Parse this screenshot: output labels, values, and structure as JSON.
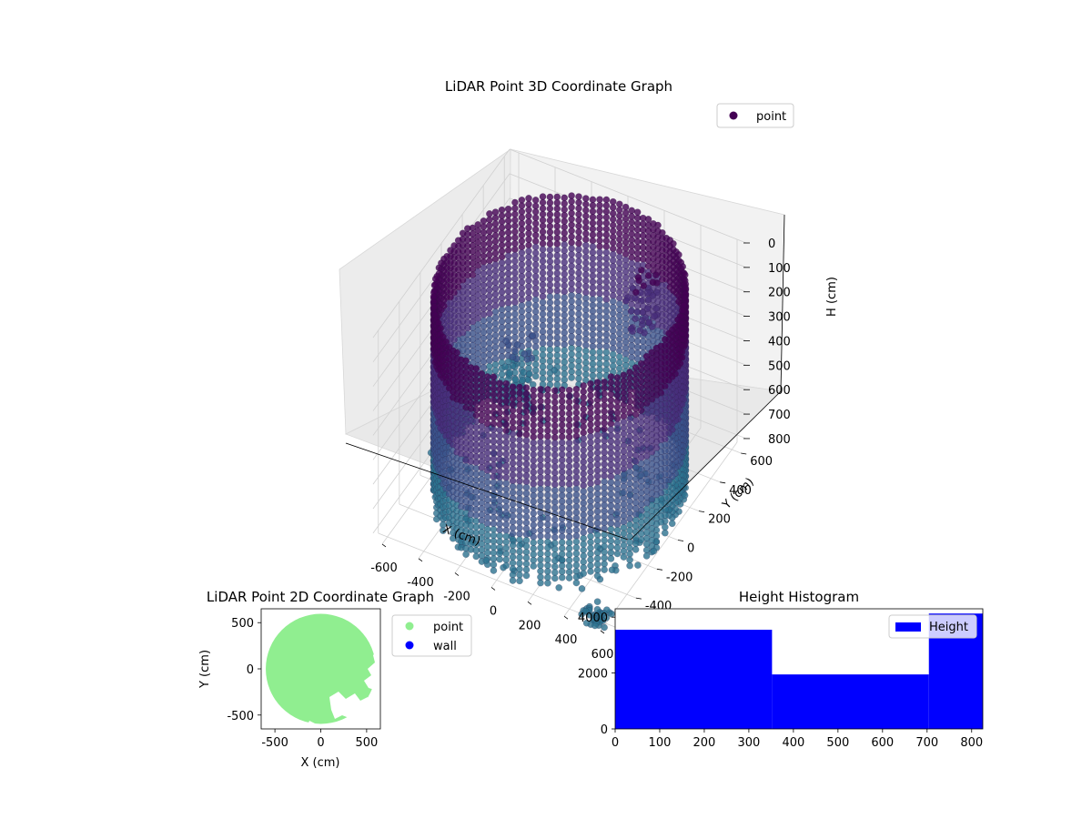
{
  "chart_data": [
    {
      "type": "scatter",
      "dimensions": 3,
      "title": "LiDAR Point 3D Coordinate Graph",
      "xlabel": "X (cm)",
      "ylabel": "Y (cm)",
      "zlabel": "H (cm)",
      "xlim": [
        -650,
        650
      ],
      "ylim": [
        -650,
        650
      ],
      "zlim": [
        830,
        0
      ],
      "x_ticks": [
        -600,
        -400,
        -200,
        0,
        200,
        400,
        600
      ],
      "y_ticks": [
        -600,
        -400,
        -200,
        0,
        200,
        400,
        600
      ],
      "z_ticks": [
        0,
        100,
        200,
        300,
        400,
        500,
        600,
        700,
        800
      ],
      "z_inverted": true,
      "grid": true,
      "legend_position": "top-right",
      "series": [
        {
          "name": "point",
          "color": "#440154",
          "colormap": [
            "#440154",
            "#472d7b",
            "#3b528b",
            "#2c728e"
          ],
          "shape": "cylinder",
          "cylinder_radius": 600,
          "height_range": [
            0,
            830
          ],
          "extras": [
            {
              "x": 200,
              "y": 450,
              "h_top": 130,
              "h_bottom": 380
            },
            {
              "x": -420,
              "y": 350,
              "h_top": 520,
              "h_bottom": 830
            },
            {
              "x": 550,
              "y": -600,
              "h_top": 780,
              "h_bottom": 830
            }
          ]
        }
      ]
    },
    {
      "type": "scatter",
      "title": "LiDAR Point 2D Coordinate Graph",
      "xlabel": "X (cm)",
      "ylabel": "Y (cm)",
      "xlim": [
        -650,
        650
      ],
      "ylim": [
        -650,
        650
      ],
      "x_ticks": [
        -500,
        0,
        500
      ],
      "y_ticks": [
        -500,
        0,
        500
      ],
      "legend_position": "outside-right",
      "series": [
        {
          "name": "point",
          "color": "#90ee90",
          "shape": "disc",
          "center": [
            0,
            0
          ],
          "radius": 600
        },
        {
          "name": "wall",
          "color": "#0000ff"
        }
      ]
    },
    {
      "type": "bar",
      "title": "Height Histogram",
      "xlim": [
        0,
        825
      ],
      "ylim": [
        0,
        4300
      ],
      "x_ticks": [
        0,
        100,
        200,
        300,
        400,
        500,
        600,
        700,
        800
      ],
      "y_ticks": [
        0,
        2000,
        4000
      ],
      "legend_position": "top-right",
      "series": [
        {
          "name": "Height",
          "color": "#0000ff",
          "bins": [
            {
              "x0": 0,
              "x1": 352,
              "value": 3550
            },
            {
              "x0": 352,
              "x1": 704,
              "value": 1950
            },
            {
              "x0": 704,
              "x1": 825,
              "value": 4130
            }
          ]
        }
      ]
    }
  ]
}
